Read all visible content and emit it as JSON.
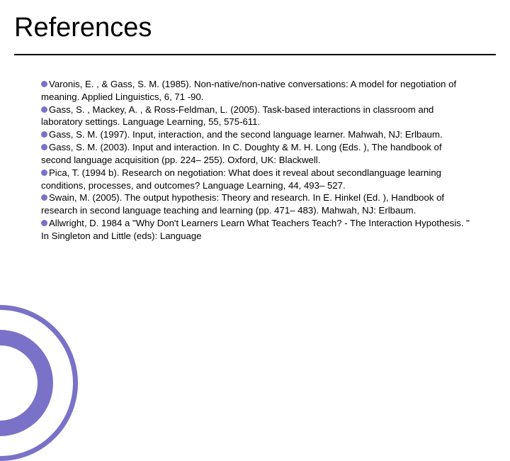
{
  "title": "References",
  "bullet_color": "#7a72c8",
  "accent_color": "#7a72c8",
  "title_line_color": "#000000",
  "background_color": "#ffffff",
  "text_color": "#000000",
  "title_fontsize": 38,
  "body_fontsize": 13.2,
  "references": [
    "Varonis, E. , & Gass, S. M. (1985). Non-native/non-native conversations: A model for negotiation of meaning. Applied Linguistics, 6, 71 -90.",
    "Gass, S. , Mackey, A. , & Ross-Feldman, L. (2005). Task-based interactions in classroom and laboratory settings. Language Learning, 55, 575-611.",
    "Gass, S. M. (1997). Input, interaction, and the second language learner. Mahwah, NJ: Erlbaum.",
    "Gass, S. M. (2003). Input and interaction. In C. Doughty & M. H. Long (Eds. ), The handbook of second language acquisition (pp. 224– 255). Oxford, UK: Blackwell.",
    "Pica, T. (1994 b). Research on negotiation: What does it reveal about secondlanguage learning conditions, processes, and outcomes? Language Learning, 44, 493– 527.",
    "Swain, M. (2005). The output hypothesis: Theory and research. In E. Hinkel (Ed. ), Handbook of research in second language teaching and learning (pp. 471– 483). Mahwah, NJ: Erlbaum.",
    "Allwright, D. 1984 a \"Why Don't Learners Learn What Teachers Teach? - The Interaction Hypothesis. \" In Singleton and Little (eds): Language"
  ]
}
